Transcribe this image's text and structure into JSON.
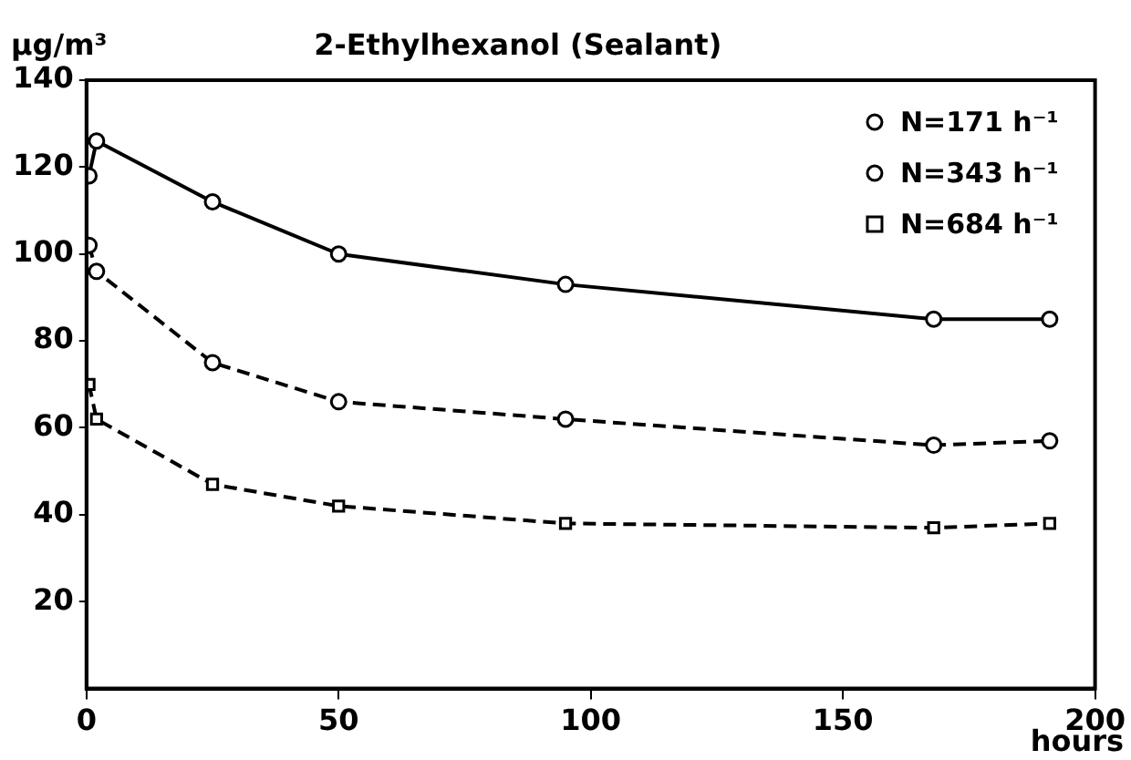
{
  "chart_data": {
    "type": "line",
    "title": "2-Ethylhexanol (Sealant)",
    "ylabel": "µg/m³",
    "xlabel": "hours",
    "xlim": [
      0,
      200
    ],
    "xticks": [
      0,
      50,
      100,
      150,
      200
    ],
    "ylim": [
      0,
      140
    ],
    "yticks": [
      20,
      40,
      60,
      80,
      100,
      120,
      140
    ],
    "grid": false,
    "legend": "top right",
    "series": [
      {
        "name": "N=171 h⁻¹",
        "color": "#000000",
        "marker": "circle",
        "line_style": "solid",
        "x": [
          0.5,
          2,
          25,
          50,
          95,
          168,
          191
        ],
        "values": [
          118,
          126,
          112,
          100,
          93,
          85,
          85
        ]
      },
      {
        "name": "N=343 h⁻¹",
        "color": "#000000",
        "marker": "circle",
        "line_style": "dashed",
        "x": [
          0.5,
          2,
          25,
          50,
          95,
          168,
          191
        ],
        "values": [
          102,
          96,
          75,
          66,
          62,
          56,
          57
        ]
      },
      {
        "name": "N=684 h⁻¹",
        "color": "#000000",
        "marker": "square",
        "line_style": "dashed",
        "x": [
          0.5,
          2,
          25,
          50,
          95,
          168,
          191
        ],
        "values": [
          70,
          62,
          47,
          42,
          38,
          37,
          38
        ]
      }
    ]
  }
}
